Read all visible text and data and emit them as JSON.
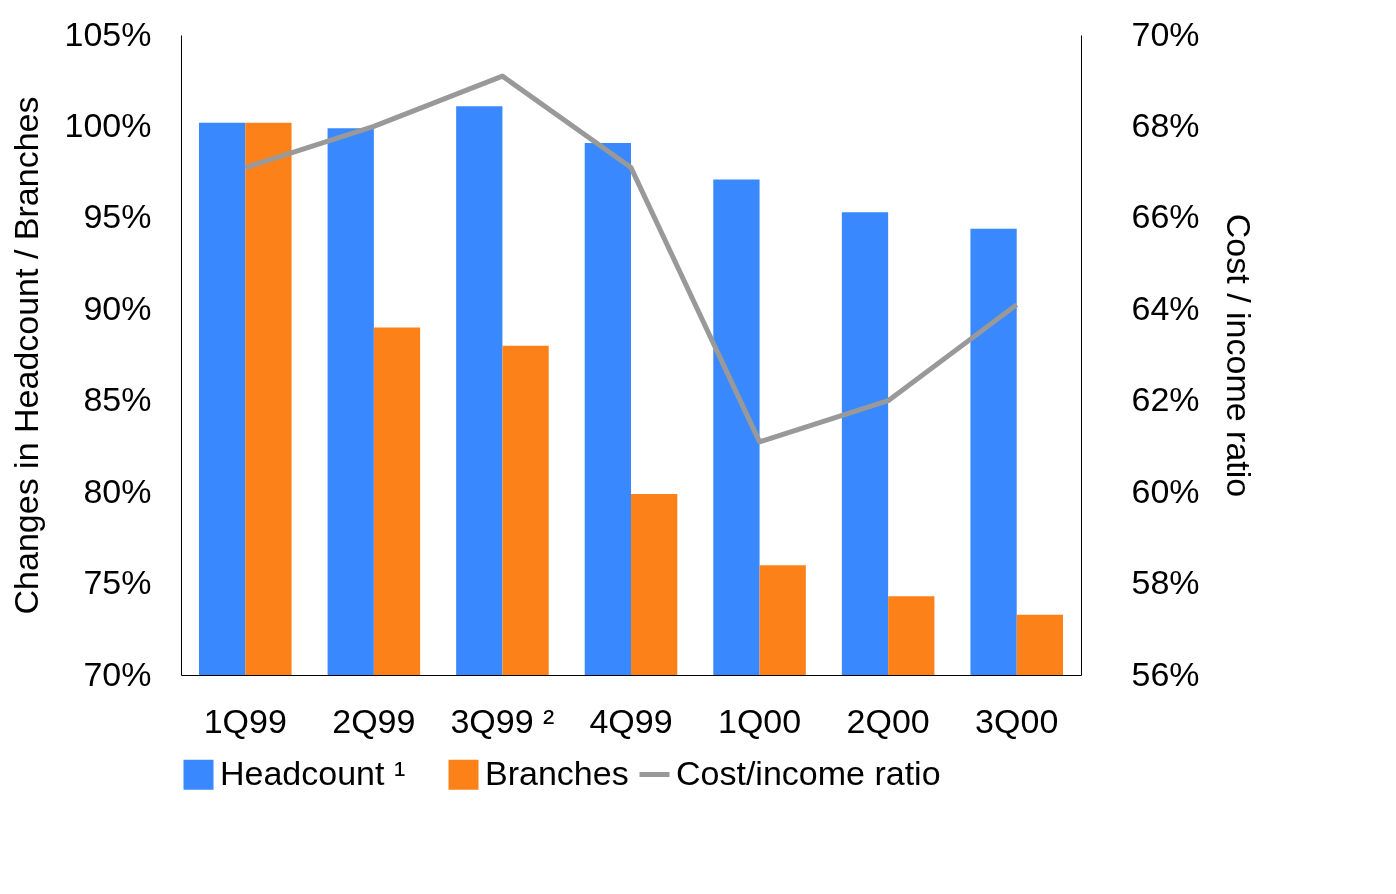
{
  "chart_data": {
    "type": "bar",
    "categories": [
      "1Q99",
      "2Q99",
      "3Q99 ²",
      "4Q99",
      "1Q00",
      "2Q00",
      "3Q00"
    ],
    "ylabel": "Changes in Headcount / Branches",
    "y2label": "Cost / income ratio",
    "ylim": [
      70,
      105
    ],
    "yticks": [
      {
        "value": 70,
        "label": "70%"
      },
      {
        "value": 75,
        "label": "75%"
      },
      {
        "value": 80,
        "label": "80%"
      },
      {
        "value": 85,
        "label": "85%"
      },
      {
        "value": 90,
        "label": "90%"
      },
      {
        "value": 95,
        "label": "95%"
      },
      {
        "value": 100,
        "label": "100%"
      },
      {
        "value": 105,
        "label": "105%"
      }
    ],
    "y2lim": [
      56,
      70
    ],
    "y2ticks": [
      {
        "value": 56,
        "label": "56%"
      },
      {
        "value": 58,
        "label": "58%"
      },
      {
        "value": 60,
        "label": "60%"
      },
      {
        "value": 62,
        "label": "62%"
      },
      {
        "value": 64,
        "label": "64%"
      },
      {
        "value": 66,
        "label": "66%"
      },
      {
        "value": 68,
        "label": "68%"
      },
      {
        "value": 70,
        "label": "70%"
      }
    ],
    "series": [
      {
        "name": "Headcount ¹",
        "color": "#3a88fe",
        "values": [
          100.2,
          99.9,
          101.1,
          99.1,
          97.1,
          95.3,
          94.4
        ]
      },
      {
        "name": "Branches",
        "color": "#fd8119",
        "values": [
          100.2,
          89.0,
          88.0,
          79.9,
          76.0,
          74.3,
          73.3
        ]
      },
      {
        "name": "Cost/income ratio",
        "color": "#999999",
        "type": "line",
        "axis": "y2",
        "values": [
          67.1,
          68.0,
          69.1,
          67.1,
          61.1,
          62.0,
          64.1
        ]
      }
    ],
    "grid": false,
    "legend": "bottom"
  }
}
